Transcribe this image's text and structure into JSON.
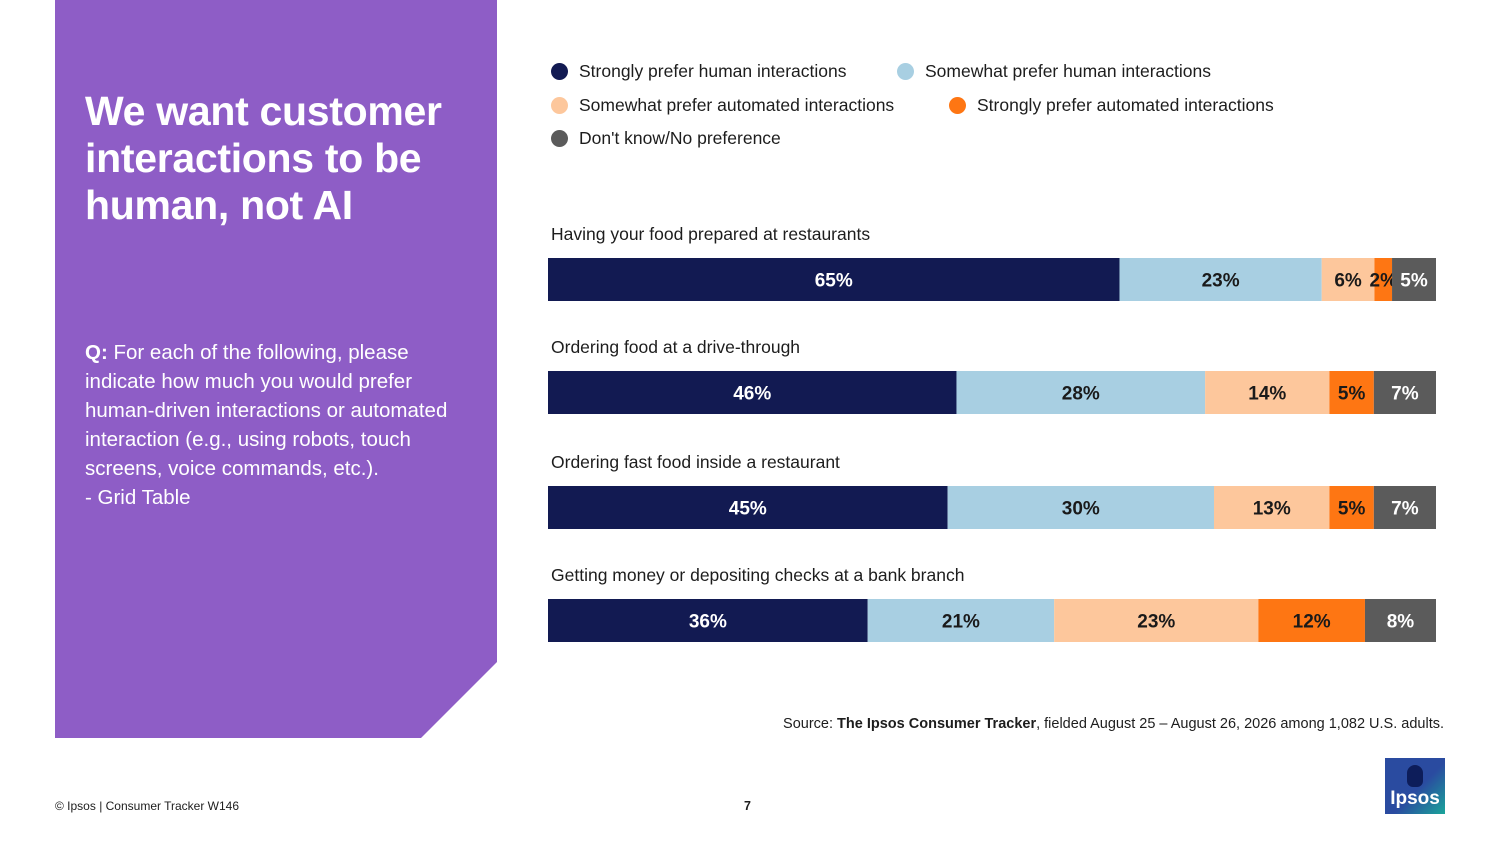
{
  "panel": {
    "title": "We want customer interactions to be human, not AI",
    "question_prefix": "Q:",
    "question_text": "For each of the following, please indicate how much you would prefer human-driven interactions or automated interaction (e.g., using robots, touch screens, voice commands, etc.).",
    "question_suffix": "- Grid Table"
  },
  "chart_data": {
    "type": "bar",
    "stacked": true,
    "orientation": "horizontal",
    "categories": [
      "Having your food prepared at restaurants",
      "Ordering food at a drive-through",
      "Ordering fast food inside a restaurant",
      "Getting money or depositing checks at a bank branch"
    ],
    "series": [
      {
        "name": "Strongly prefer human interactions",
        "color": "#121a52",
        "text_color": "#ffffff",
        "values": [
          65,
          46,
          45,
          36
        ]
      },
      {
        "name": "Somewhat prefer human interactions",
        "color": "#a8cfe2",
        "text_color": "#1a1a1a",
        "values": [
          23,
          28,
          30,
          21
        ]
      },
      {
        "name": "Somewhat prefer automated interactions",
        "color": "#fdc79c",
        "text_color": "#1a1a1a",
        "values": [
          6,
          14,
          13,
          23
        ]
      },
      {
        "name": "Strongly prefer automated interactions",
        "color": "#fe7613",
        "text_color": "#1a1a1a",
        "values": [
          2,
          5,
          5,
          12
        ]
      },
      {
        "name": "Don't know/No preference",
        "color": "#5b5b5b",
        "text_color": "#ffffff",
        "values": [
          5,
          7,
          7,
          8
        ]
      }
    ],
    "value_suffix": "%",
    "legend_position": "top"
  },
  "source": {
    "prefix": "Source:",
    "name": "The Ipsos Consumer Tracker",
    "text": ", fielded August 25 – August 26, 2026 among 1,082 U.S. adults."
  },
  "footer": {
    "copyright": "© Ipsos | Consumer Tracker W146",
    "page_number": "7",
    "logo_text": "Ipsos"
  }
}
